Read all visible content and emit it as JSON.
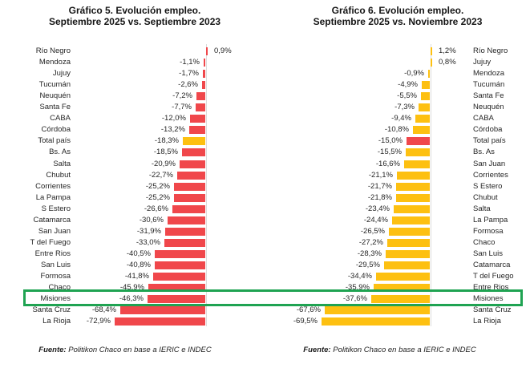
{
  "highlight": {
    "label": "Misiones",
    "color": "#1FA352"
  },
  "source": {
    "bold": "Fuente:",
    "text": " Politikon Chaco en base a IERIC e INDEC"
  },
  "chart_data": [
    {
      "type": "bar",
      "orientation": "horizontal",
      "title_line1": "Gráfico 5. Evolución empleo.",
      "title_line2": "Septiembre 2025 vs. Septiembre 2023",
      "bar_color": "#F0474B",
      "emphasis_color": "#FDC011",
      "labels_side": "left",
      "value_suffix": "%",
      "value_range": [
        -80,
        5
      ],
      "grid": false,
      "points": [
        {
          "label": "Río Negro",
          "value": 0.9,
          "display": "0,9%"
        },
        {
          "label": "Mendoza",
          "value": -1.1,
          "display": "-1,1%"
        },
        {
          "label": "Jujuy",
          "value": -1.7,
          "display": "-1,7%"
        },
        {
          "label": "Tucumán",
          "value": -2.6,
          "display": "-2,6%"
        },
        {
          "label": "Neuquén",
          "value": -7.2,
          "display": "-7,2%"
        },
        {
          "label": "Santa Fe",
          "value": -7.7,
          "display": "-7,7%"
        },
        {
          "label": "CABA",
          "value": -12.0,
          "display": "-12,0%"
        },
        {
          "label": "Córdoba",
          "value": -13.2,
          "display": "-13,2%"
        },
        {
          "label": "Total país",
          "value": -18.3,
          "display": "-18,3%",
          "emphasis": true
        },
        {
          "label": "Bs. As",
          "value": -18.5,
          "display": "-18,5%"
        },
        {
          "label": "Salta",
          "value": -20.9,
          "display": "-20,9%"
        },
        {
          "label": "Chubut",
          "value": -22.7,
          "display": "-22,7%"
        },
        {
          "label": "Corrientes",
          "value": -25.2,
          "display": "-25,2%"
        },
        {
          "label": "La Pampa",
          "value": -25.2,
          "display": "-25,2%"
        },
        {
          "label": "S Estero",
          "value": -26.6,
          "display": "-26,6%"
        },
        {
          "label": "Catamarca",
          "value": -30.6,
          "display": "-30,6%"
        },
        {
          "label": "San Juan",
          "value": -31.9,
          "display": "-31,9%"
        },
        {
          "label": "T del Fuego",
          "value": -33.0,
          "display": "-33,0%"
        },
        {
          "label": "Entre Rios",
          "value": -40.5,
          "display": "-40,5%"
        },
        {
          "label": "San Luis",
          "value": -40.8,
          "display": "-40,8%"
        },
        {
          "label": "Formosa",
          "value": -41.8,
          "display": "-41,8%"
        },
        {
          "label": "Chaco",
          "value": -45.9,
          "display": "-45,9%"
        },
        {
          "label": "Misiones",
          "value": -46.3,
          "display": "-46,3%",
          "highlight": true
        },
        {
          "label": "Santa Cruz",
          "value": -68.4,
          "display": "-68,4%"
        },
        {
          "label": "La Rioja",
          "value": -72.9,
          "display": "-72,9%"
        }
      ]
    },
    {
      "type": "bar",
      "orientation": "horizontal",
      "title_line1": "Gráfico 6. Evolución empleo.",
      "title_line2": "Septiembre 2025 vs. Noviembre 2023",
      "bar_color": "#FDC011",
      "emphasis_color": "#F0474B",
      "labels_side": "right",
      "value_suffix": "%",
      "value_range": [
        -80,
        5
      ],
      "grid": false,
      "points": [
        {
          "label": "Río Negro",
          "value": 1.2,
          "display": "1,2%"
        },
        {
          "label": "Jujuy",
          "value": 0.8,
          "display": "0,8%"
        },
        {
          "label": "Mendoza",
          "value": -0.9,
          "display": "-0,9%"
        },
        {
          "label": "Tucumán",
          "value": -4.9,
          "display": "-4,9%"
        },
        {
          "label": "Santa Fe",
          "value": -5.5,
          "display": "-5,5%"
        },
        {
          "label": "Neuquén",
          "value": -7.3,
          "display": "-7,3%"
        },
        {
          "label": "CABA",
          "value": -9.4,
          "display": "-9,4%"
        },
        {
          "label": "Córdoba",
          "value": -10.8,
          "display": "-10,8%"
        },
        {
          "label": "Total país",
          "value": -15.0,
          "display": "-15,0%",
          "emphasis": true
        },
        {
          "label": "Bs. As",
          "value": -15.5,
          "display": "-15,5%"
        },
        {
          "label": "San Juan",
          "value": -16.6,
          "display": "-16,6%"
        },
        {
          "label": "Corrientes",
          "value": -21.1,
          "display": "-21,1%"
        },
        {
          "label": "S Estero",
          "value": -21.7,
          "display": "-21,7%"
        },
        {
          "label": "Chubut",
          "value": -21.8,
          "display": "-21,8%"
        },
        {
          "label": "Salta",
          "value": -23.4,
          "display": "-23,4%"
        },
        {
          "label": "La Pampa",
          "value": -24.4,
          "display": "-24,4%"
        },
        {
          "label": "Formosa",
          "value": -26.5,
          "display": "-26,5%"
        },
        {
          "label": "Chaco",
          "value": -27.2,
          "display": "-27,2%"
        },
        {
          "label": "San Luis",
          "value": -28.3,
          "display": "-28,3%"
        },
        {
          "label": "Catamarca",
          "value": -29.5,
          "display": "-29,5%"
        },
        {
          "label": "T del Fuego",
          "value": -34.4,
          "display": "-34,4%"
        },
        {
          "label": "Entre Rios",
          "value": -35.9,
          "display": "-35,9%"
        },
        {
          "label": "Misiones",
          "value": -37.6,
          "display": "-37,6%",
          "highlight": true
        },
        {
          "label": "Santa Cruz",
          "value": -67.6,
          "display": "-67,6%"
        },
        {
          "label": "La Rioja",
          "value": -69.5,
          "display": "-69,5%"
        }
      ]
    }
  ]
}
